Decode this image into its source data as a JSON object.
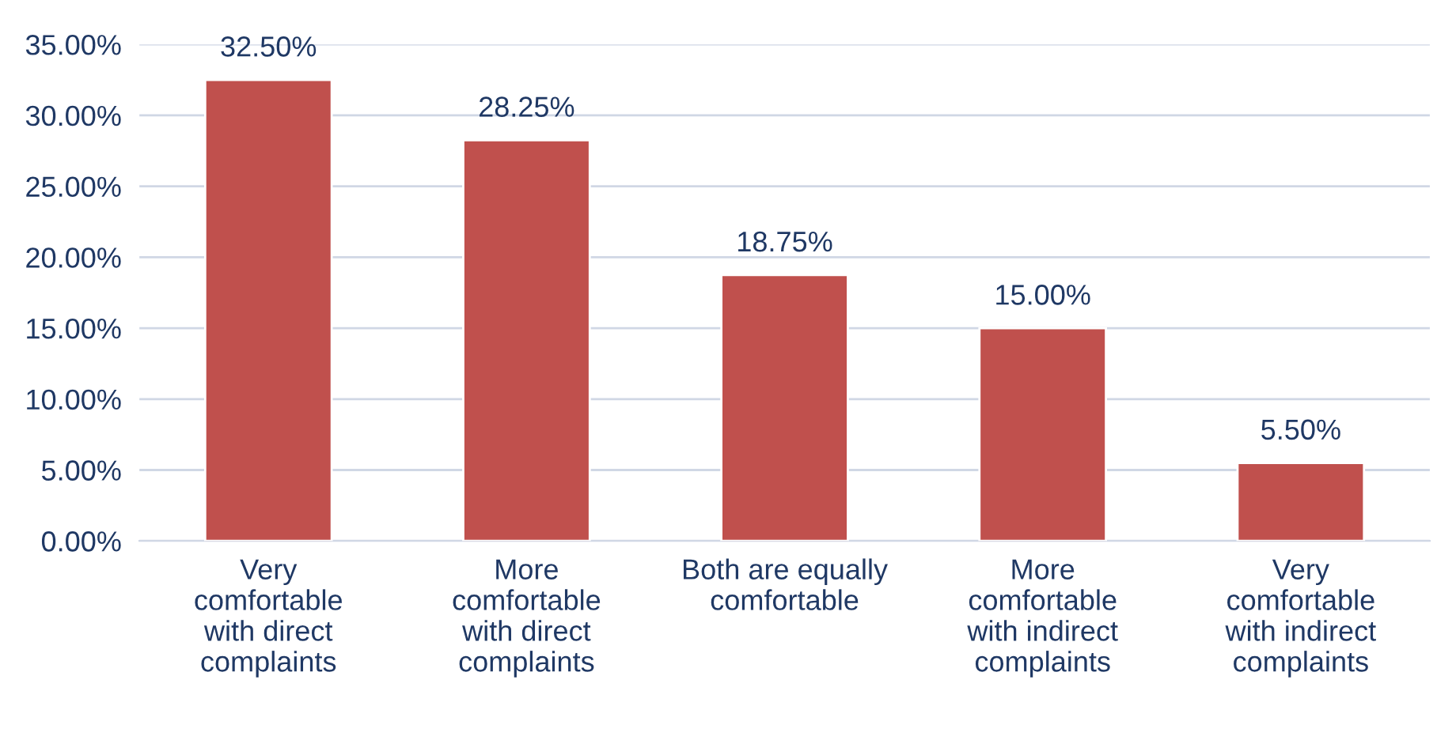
{
  "chart_data": {
    "type": "bar",
    "categories": [
      "Very\ncomfortable\nwith direct\ncomplaints",
      "More\ncomfortable\nwith direct\ncomplaints",
      "Both are equally\ncomfortable",
      "More\ncomfortable\nwith indirect\ncomplaints",
      "Very\ncomfortable\nwith indirect\ncomplaints"
    ],
    "values": [
      32.5,
      28.25,
      18.75,
      15.0,
      5.5
    ],
    "value_labels": [
      "32.50%",
      "28.25%",
      "18.75%",
      "15.00%",
      "5.50%"
    ],
    "color": "#c0504d",
    "ylim": [
      0,
      35
    ],
    "yticks": [
      {
        "value": 0,
        "label": "0.00%"
      },
      {
        "value": 5,
        "label": "5.00%"
      },
      {
        "value": 10,
        "label": "10.00%"
      },
      {
        "value": 15,
        "label": "15.00%"
      },
      {
        "value": 20,
        "label": "20.00%"
      },
      {
        "value": 25,
        "label": "25.00%"
      },
      {
        "value": 30,
        "label": "30.00%"
      },
      {
        "value": 35,
        "label": "35.00%"
      }
    ],
    "grid": "y"
  }
}
